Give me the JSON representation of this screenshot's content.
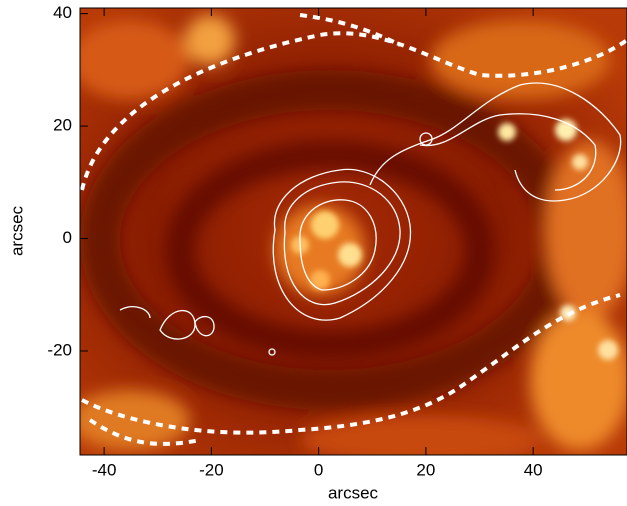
{
  "chart_data": {
    "type": "image",
    "xlabel": "arcsec",
    "ylabel": "arcsec",
    "xlim": [
      -44.5,
      57.5
    ],
    "ylim": [
      -38.5,
      41
    ],
    "xticks": [
      -40,
      -20,
      0,
      20,
      40
    ],
    "yticks": [
      -20,
      0,
      20,
      40
    ]
  }
}
